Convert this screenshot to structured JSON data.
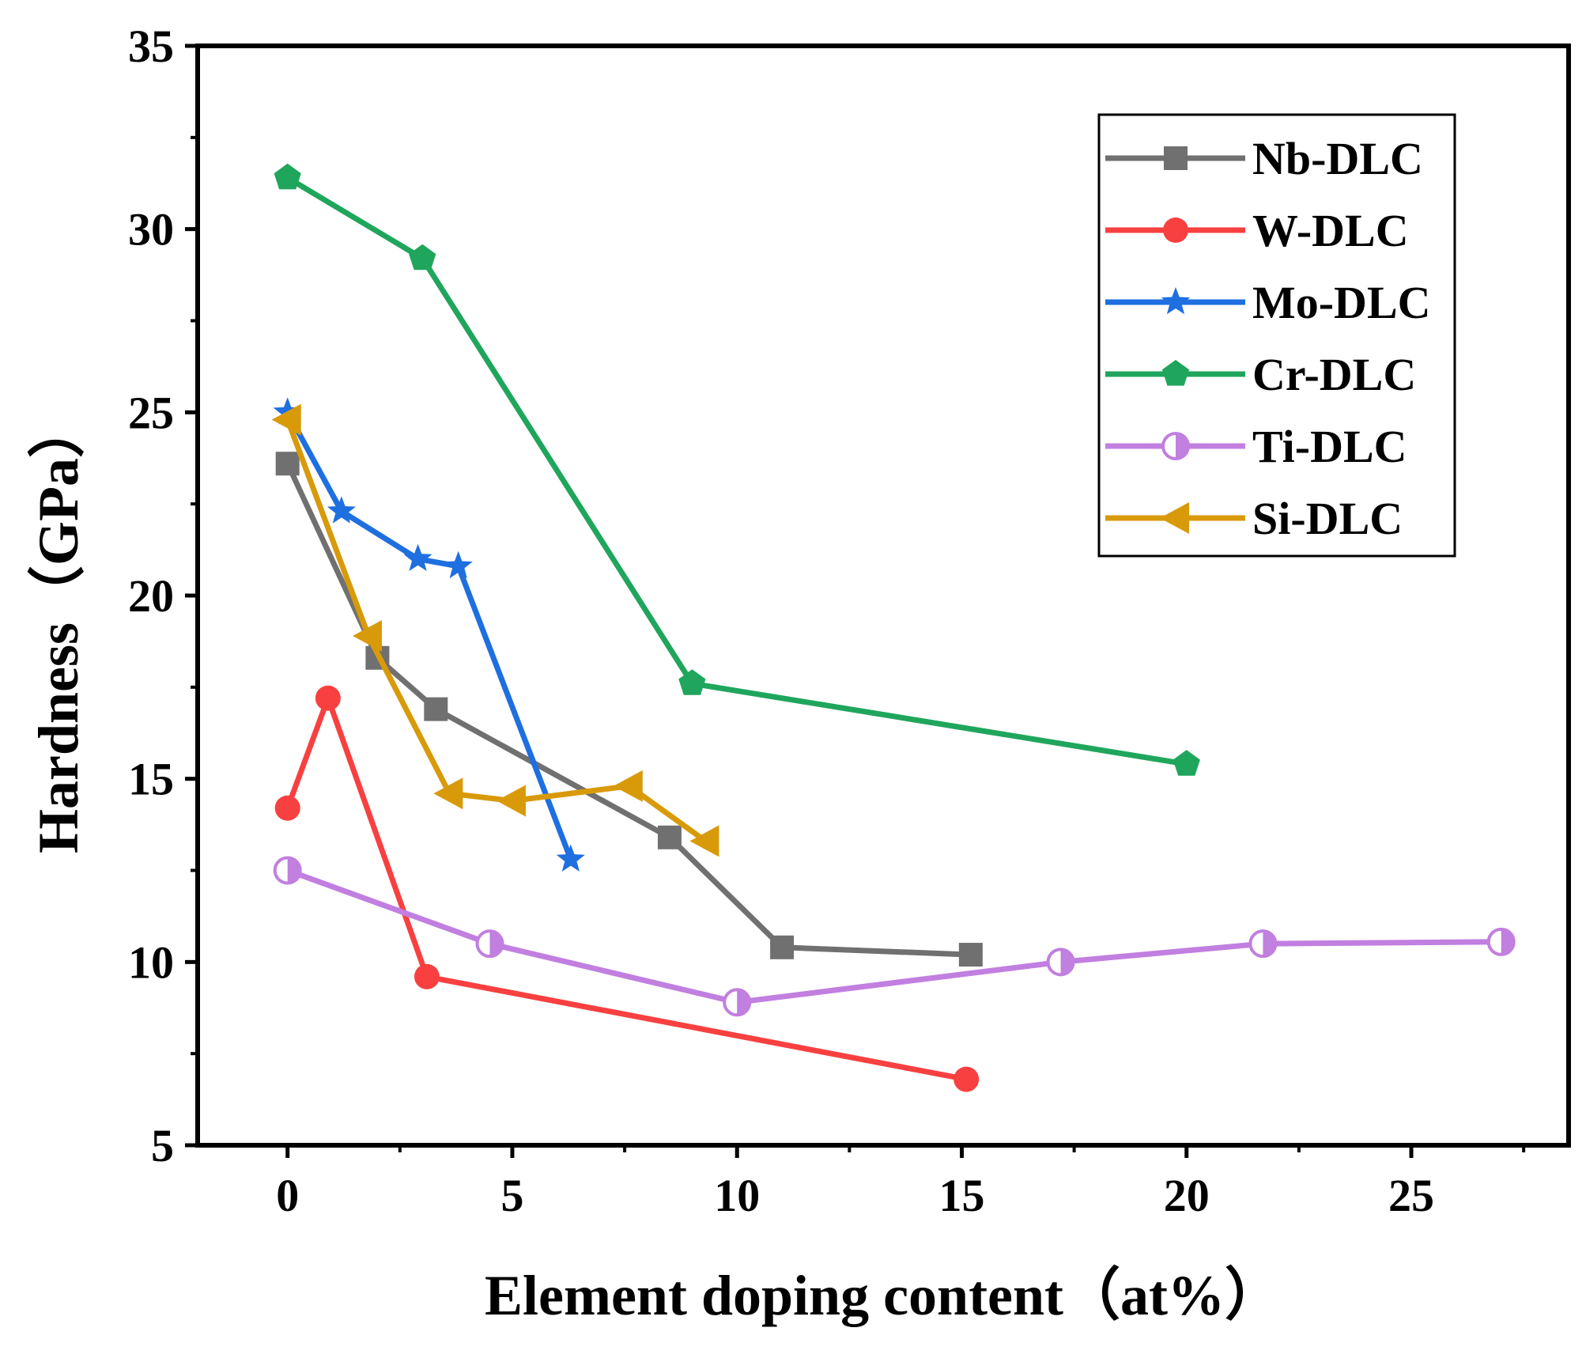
{
  "chart_data": {
    "type": "line",
    "title": "",
    "xlabel": "Element doping content（at%）",
    "ylabel": "Hardness（GPa）",
    "xlim": [
      -2,
      28.5
    ],
    "ylim": [
      5,
      35
    ],
    "xticks": [
      0,
      5,
      10,
      15,
      20,
      25
    ],
    "yticks": [
      5,
      10,
      15,
      20,
      25,
      30,
      35
    ],
    "grid": false,
    "legend_position": "top-right",
    "series": [
      {
        "name": "Nb-DLC",
        "color": "#707070",
        "marker": "square",
        "x": [
          0,
          2.0,
          3.3,
          8.5,
          11.0,
          15.2
        ],
        "y": [
          23.6,
          18.3,
          16.9,
          13.4,
          10.4,
          10.2
        ]
      },
      {
        "name": "W-DLC",
        "color": "#f84040",
        "marker": "circle",
        "x": [
          0,
          0.9,
          3.1,
          15.1
        ],
        "y": [
          14.2,
          17.2,
          9.6,
          6.8
        ]
      },
      {
        "name": "Mo-DLC",
        "color": "#1e6fe0",
        "marker": "star",
        "x": [
          0,
          1.2,
          2.9,
          3.8,
          6.3
        ],
        "y": [
          25.0,
          22.3,
          21.0,
          20.8,
          12.8
        ]
      },
      {
        "name": "Cr-DLC",
        "color": "#1fa65c",
        "marker": "pentagon",
        "x": [
          0,
          3.0,
          9.0,
          20.0
        ],
        "y": [
          31.4,
          29.2,
          17.6,
          15.4
        ]
      },
      {
        "name": "Ti-DLC",
        "color": "#c17fe0",
        "marker": "half-circle",
        "x": [
          0,
          4.5,
          10.0,
          17.2,
          21.7,
          27.0
        ],
        "y": [
          12.5,
          10.5,
          8.9,
          10.0,
          10.5,
          10.55
        ]
      },
      {
        "name": "Si-DLC",
        "color": "#d99a0a",
        "marker": "triangle-left",
        "x": [
          0,
          1.8,
          3.6,
          5.0,
          7.6,
          9.3
        ],
        "y": [
          24.8,
          18.9,
          14.6,
          14.4,
          14.8,
          13.3
        ]
      }
    ]
  }
}
